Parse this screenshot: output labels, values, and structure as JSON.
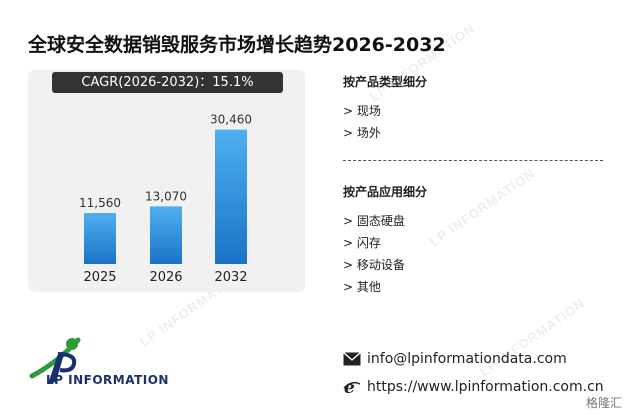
{
  "title": "全球安全数据销毁服务市场增长趋势2026-2032",
  "cagr_label": "CAGR(2026-2032)：15.1%",
  "chart_data": {
    "type": "bar",
    "categories": [
      "2025",
      "2026",
      "2032"
    ],
    "values": [
      11560,
      13070,
      30460
    ],
    "value_labels": [
      "11,560",
      "13,070",
      "30,460"
    ],
    "title": "",
    "xlabel": "",
    "ylabel": "",
    "ylim": [
      0,
      34000
    ],
    "grid": false,
    "bar_color": "#2b8fd8"
  },
  "segments": {
    "by_type": {
      "heading": "按产品类型细分",
      "items": [
        "> 现场",
        "> 场外"
      ]
    },
    "by_application": {
      "heading": "按产品应用细分",
      "items": [
        "> 固态硬盘",
        "> 闪存",
        "> 移动设备",
        "> 其他"
      ]
    }
  },
  "contact": {
    "email": "info@lpinformationdata.com",
    "website": "https://www.lpinformation.com.cn",
    "email_icon": "envelope-icon",
    "website_icon": "browser-e-icon"
  },
  "brand": {
    "logo_text": "LP INFORMATION",
    "watermark_text": "LP INFORMATION",
    "badge_text": "格隆汇",
    "colors": {
      "logo_green": "#2e9b3a",
      "logo_blue": "#1a2f6e"
    }
  }
}
